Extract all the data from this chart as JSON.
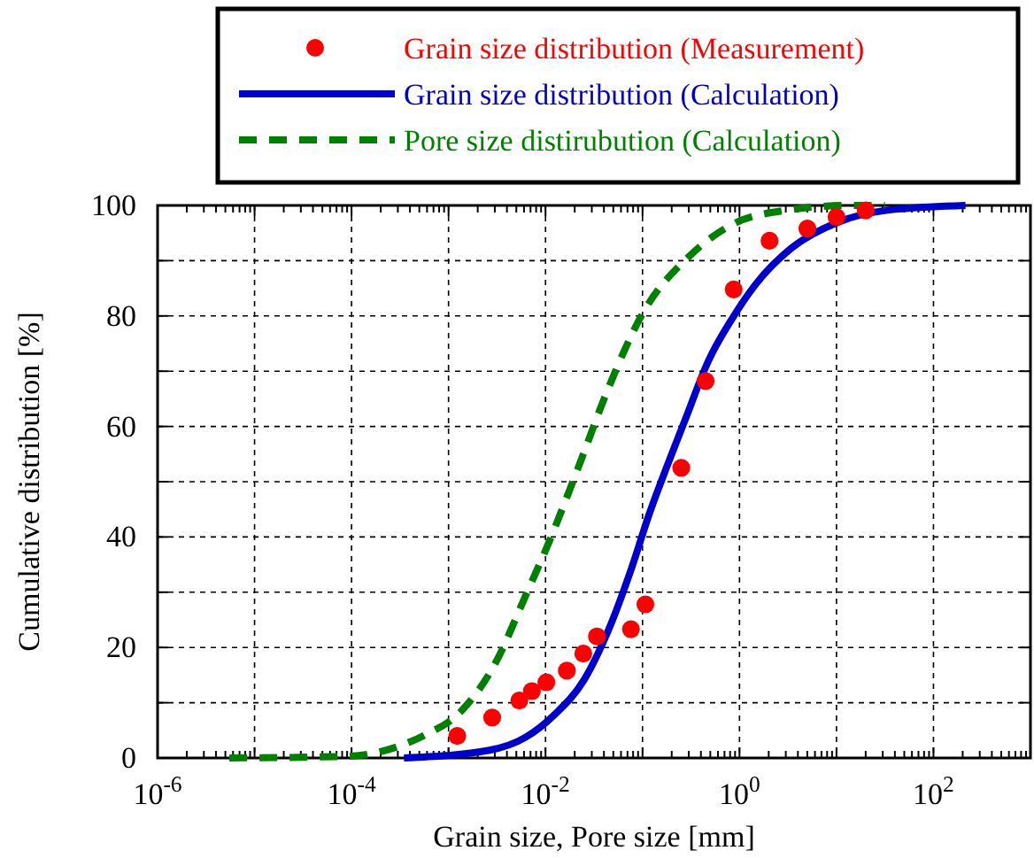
{
  "chart_data": {
    "type": "line",
    "xlabel": "Grain size, Pore size [mm]",
    "ylabel": "Cumulative distribution [%]",
    "log": "x",
    "grid": true,
    "legend": "top",
    "xlim": [
      1e-06,
      1000
    ],
    "ylim": [
      0,
      100
    ],
    "xticks": [
      {
        "value": 1e-06,
        "label": "10$^{-6}$"
      },
      {
        "value": 1e-05,
        "label": null
      },
      {
        "value": 0.0001,
        "label": "10$^{-4}$"
      },
      {
        "value": 0.001,
        "label": null
      },
      {
        "value": 0.01,
        "label": "10$^{-2}$"
      },
      {
        "value": 0.1,
        "label": null
      },
      {
        "value": 1,
        "label": "10$^{0}$"
      },
      {
        "value": 10,
        "label": null
      },
      {
        "value": 100,
        "label": "10$^{2}$"
      },
      {
        "value": 1000,
        "label": null
      }
    ],
    "yticks": [
      0,
      {
        "value": 10,
        "label": null
      },
      20,
      {
        "value": 30,
        "label": null
      },
      40,
      {
        "value": 50,
        "label": null
      },
      60,
      {
        "value": 70,
        "label": null
      },
      80,
      {
        "value": 90,
        "label": null
      },
      100
    ],
    "series": [
      {
        "name": "Grain size distribution (Measurement)",
        "type": "scatter",
        "marker": "circle",
        "color": "#ff0000",
        "x": [
          0.00123,
          0.00282,
          0.00537,
          0.00724,
          0.0102,
          0.0166,
          0.0245,
          0.0339,
          0.0759,
          0.107,
          0.251,
          0.447,
          0.871,
          2.04,
          5.01,
          10,
          20
        ],
        "values": [
          4,
          7.3,
          10.4,
          12.1,
          13.7,
          15.8,
          18.9,
          22,
          23.3,
          27.8,
          52.5,
          68.2,
          84.8,
          93.6,
          95.8,
          97.9,
          99.1
        ]
      },
      {
        "name": "Grain size distribution (Calculation)",
        "line_style": "solid",
        "color": "#0000cc",
        "x": [
          0.000347,
          0.00263,
          0.00617,
          0.0123,
          0.0251,
          0.0437,
          0.0776,
          0.117,
          0.178,
          0.275,
          0.479,
          0.832,
          1.48,
          3.39,
          10.5,
          32.4,
          214
        ],
        "values": [
          0,
          1.4,
          3.7,
          7.8,
          14.2,
          22.8,
          34.5,
          44.1,
          52.7,
          61.2,
          71.9,
          79.4,
          85.8,
          92.2,
          97,
          99.1,
          100
        ]
      },
      {
        "name": "Pore size distirubution (Calculation)",
        "line_style": "dashed",
        "color": "#008000",
        "x": [
          5.5e-06,
          9.1e-05,
          0.000282,
          0.000562,
          0.00132,
          0.00309,
          0.00617,
          0.0107,
          0.0219,
          0.0437,
          0.1,
          0.316,
          0.832,
          2.95,
          13.8,
          31.6
        ],
        "values": [
          0,
          0.3,
          1.9,
          4.1,
          8.3,
          17.4,
          29.2,
          38.8,
          52.7,
          66.6,
          80.4,
          91.1,
          96.5,
          99.1,
          100,
          100
        ]
      }
    ]
  }
}
